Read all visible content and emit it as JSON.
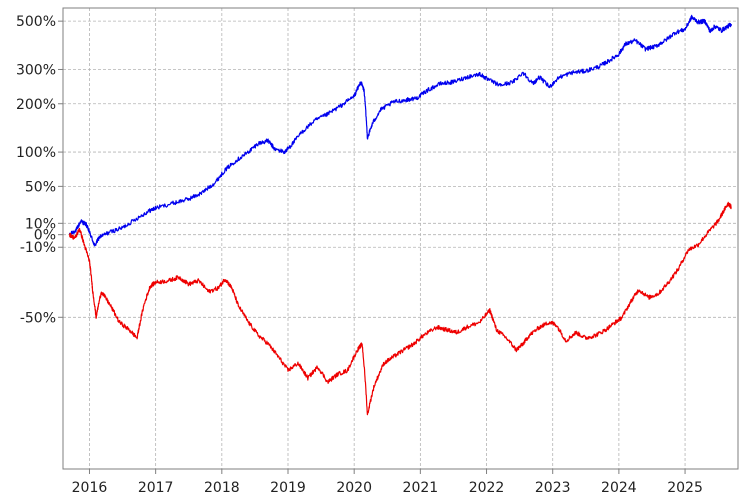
{
  "chart_data": {
    "type": "line",
    "title": "",
    "xlabel": "",
    "ylabel": "",
    "y_scale": "log of (1 + return)",
    "xlim": [
      2015.6,
      2025.8
    ],
    "ylim": [
      -0.86,
      5.7
    ],
    "x_ticks": [
      "2016",
      "2017",
      "2018",
      "2019",
      "2020",
      "2021",
      "2022",
      "2023",
      "2024",
      "2025"
    ],
    "y_ticks": [
      {
        "label": "500%",
        "value": 5.0
      },
      {
        "label": "300%",
        "value": 3.0
      },
      {
        "label": "200%",
        "value": 2.0
      },
      {
        "label": "100%",
        "value": 1.0
      },
      {
        "label": "50%",
        "value": 0.5
      },
      {
        "label": "10%",
        "value": 0.1
      },
      {
        "label": "0%",
        "value": 0.0
      },
      {
        "label": "-10%",
        "value": -0.1
      },
      {
        "label": "-50%",
        "value": -0.5
      }
    ],
    "grid": true,
    "legend": "none",
    "series": [
      {
        "color": "#0000ee",
        "points": [
          [
            2015.7,
            0.0
          ],
          [
            2015.8,
            0.04
          ],
          [
            2015.87,
            0.12
          ],
          [
            2015.95,
            0.09
          ],
          [
            2016.0,
            0.02
          ],
          [
            2016.08,
            -0.09
          ],
          [
            2016.15,
            -0.02
          ],
          [
            2016.3,
            0.02
          ],
          [
            2016.5,
            0.06
          ],
          [
            2016.7,
            0.14
          ],
          [
            2016.9,
            0.22
          ],
          [
            2017.0,
            0.25
          ],
          [
            2017.3,
            0.31
          ],
          [
            2017.5,
            0.35
          ],
          [
            2017.7,
            0.42
          ],
          [
            2017.9,
            0.55
          ],
          [
            2018.05,
            0.72
          ],
          [
            2018.2,
            0.85
          ],
          [
            2018.4,
            1.0
          ],
          [
            2018.55,
            1.15
          ],
          [
            2018.7,
            1.2
          ],
          [
            2018.8,
            1.05
          ],
          [
            2018.95,
            1.0
          ],
          [
            2019.05,
            1.12
          ],
          [
            2019.2,
            1.35
          ],
          [
            2019.4,
            1.6
          ],
          [
            2019.6,
            1.75
          ],
          [
            2019.8,
            1.95
          ],
          [
            2020.0,
            2.2
          ],
          [
            2020.1,
            2.6
          ],
          [
            2020.15,
            2.35
          ],
          [
            2020.2,
            1.25
          ],
          [
            2020.28,
            1.55
          ],
          [
            2020.4,
            1.85
          ],
          [
            2020.6,
            2.05
          ],
          [
            2020.8,
            2.1
          ],
          [
            2020.95,
            2.15
          ],
          [
            2021.1,
            2.35
          ],
          [
            2021.3,
            2.55
          ],
          [
            2021.5,
            2.6
          ],
          [
            2021.7,
            2.75
          ],
          [
            2021.9,
            2.85
          ],
          [
            2022.0,
            2.7
          ],
          [
            2022.2,
            2.5
          ],
          [
            2022.4,
            2.6
          ],
          [
            2022.55,
            2.9
          ],
          [
            2022.7,
            2.55
          ],
          [
            2022.8,
            2.75
          ],
          [
            2022.95,
            2.45
          ],
          [
            2023.1,
            2.75
          ],
          [
            2023.3,
            2.9
          ],
          [
            2023.5,
            2.95
          ],
          [
            2023.7,
            3.1
          ],
          [
            2023.85,
            3.3
          ],
          [
            2024.0,
            3.55
          ],
          [
            2024.1,
            3.95
          ],
          [
            2024.25,
            4.1
          ],
          [
            2024.4,
            3.75
          ],
          [
            2024.55,
            3.85
          ],
          [
            2024.7,
            4.1
          ],
          [
            2024.85,
            4.45
          ],
          [
            2025.0,
            4.6
          ],
          [
            2025.1,
            5.2
          ],
          [
            2025.2,
            4.95
          ],
          [
            2025.3,
            5.0
          ],
          [
            2025.38,
            4.5
          ],
          [
            2025.45,
            4.75
          ],
          [
            2025.55,
            4.55
          ],
          [
            2025.65,
            4.75
          ],
          [
            2025.7,
            4.85
          ]
        ]
      },
      {
        "color": "#ee0000",
        "points": [
          [
            2015.7,
            0.0
          ],
          [
            2015.78,
            -0.03
          ],
          [
            2015.85,
            0.05
          ],
          [
            2015.92,
            -0.08
          ],
          [
            2016.0,
            -0.2
          ],
          [
            2016.05,
            -0.38
          ],
          [
            2016.1,
            -0.5
          ],
          [
            2016.18,
            -0.38
          ],
          [
            2016.3,
            -0.44
          ],
          [
            2016.45,
            -0.52
          ],
          [
            2016.6,
            -0.55
          ],
          [
            2016.72,
            -0.58
          ],
          [
            2016.82,
            -0.45
          ],
          [
            2016.92,
            -0.35
          ],
          [
            2017.0,
            -0.33
          ],
          [
            2017.2,
            -0.32
          ],
          [
            2017.35,
            -0.3
          ],
          [
            2017.5,
            -0.34
          ],
          [
            2017.65,
            -0.32
          ],
          [
            2017.8,
            -0.38
          ],
          [
            2017.95,
            -0.36
          ],
          [
            2018.05,
            -0.31
          ],
          [
            2018.15,
            -0.36
          ],
          [
            2018.25,
            -0.45
          ],
          [
            2018.4,
            -0.52
          ],
          [
            2018.55,
            -0.57
          ],
          [
            2018.7,
            -0.6
          ],
          [
            2018.85,
            -0.64
          ],
          [
            2019.0,
            -0.68
          ],
          [
            2019.15,
            -0.66
          ],
          [
            2019.3,
            -0.7
          ],
          [
            2019.45,
            -0.67
          ],
          [
            2019.6,
            -0.71
          ],
          [
            2019.75,
            -0.69
          ],
          [
            2019.9,
            -0.68
          ],
          [
            2020.05,
            -0.62
          ],
          [
            2020.12,
            -0.6
          ],
          [
            2020.2,
            -0.78
          ],
          [
            2020.3,
            -0.72
          ],
          [
            2020.45,
            -0.66
          ],
          [
            2020.6,
            -0.64
          ],
          [
            2020.75,
            -0.62
          ],
          [
            2020.9,
            -0.6
          ],
          [
            2021.05,
            -0.57
          ],
          [
            2021.25,
            -0.54
          ],
          [
            2021.4,
            -0.55
          ],
          [
            2021.55,
            -0.56
          ],
          [
            2021.7,
            -0.54
          ],
          [
            2021.9,
            -0.52
          ],
          [
            2022.05,
            -0.47
          ],
          [
            2022.15,
            -0.55
          ],
          [
            2022.3,
            -0.58
          ],
          [
            2022.45,
            -0.62
          ],
          [
            2022.55,
            -0.6
          ],
          [
            2022.65,
            -0.57
          ],
          [
            2022.8,
            -0.54
          ],
          [
            2022.95,
            -0.52
          ],
          [
            2023.05,
            -0.53
          ],
          [
            2023.2,
            -0.59
          ],
          [
            2023.35,
            -0.56
          ],
          [
            2023.5,
            -0.58
          ],
          [
            2023.65,
            -0.57
          ],
          [
            2023.8,
            -0.55
          ],
          [
            2023.95,
            -0.52
          ],
          [
            2024.05,
            -0.5
          ],
          [
            2024.2,
            -0.42
          ],
          [
            2024.3,
            -0.37
          ],
          [
            2024.45,
            -0.41
          ],
          [
            2024.6,
            -0.39
          ],
          [
            2024.75,
            -0.33
          ],
          [
            2024.9,
            -0.25
          ],
          [
            2025.05,
            -0.12
          ],
          [
            2025.2,
            -0.08
          ],
          [
            2025.35,
            0.02
          ],
          [
            2025.5,
            0.12
          ],
          [
            2025.6,
            0.24
          ],
          [
            2025.65,
            0.3
          ],
          [
            2025.7,
            0.26
          ]
        ]
      }
    ]
  }
}
